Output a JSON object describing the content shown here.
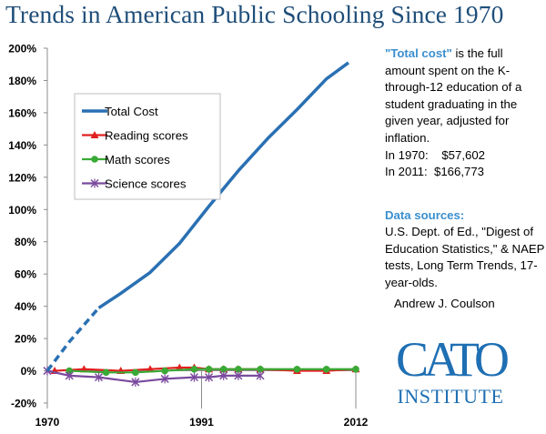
{
  "chart_data": {
    "type": "line",
    "title": "Trends in American Public Schooling Since 1970",
    "xlabel": "",
    "ylabel": "",
    "xlim": [
      1970,
      2012
    ],
    "ylim": [
      -20,
      200
    ],
    "x_ticks": [
      "1970",
      "1991",
      "2012"
    ],
    "x_tick_values": [
      1970,
      1991,
      2012
    ],
    "y_ticks": [
      "200%",
      "180%",
      "160%",
      "140%",
      "120%",
      "100%",
      "80%",
      "60%",
      "40%",
      "20%",
      "0%",
      "-20%"
    ],
    "y_tick_values": [
      200,
      180,
      160,
      140,
      120,
      100,
      80,
      60,
      40,
      20,
      0,
      -20
    ],
    "grid": false,
    "legend": "upper-left",
    "series": [
      {
        "name": "Total Cost",
        "color": "#2a70b3",
        "marker": "none",
        "dashed_until": 1977,
        "x": [
          1970,
          1973,
          1977,
          1980,
          1984,
          1988,
          1992,
          1996,
          2000,
          2004,
          2008,
          2011
        ],
        "y": [
          0,
          18,
          39,
          48,
          61,
          79,
          102,
          124,
          144,
          162,
          181,
          191
        ]
      },
      {
        "name": "Reading scores",
        "color": "#e02020",
        "marker": "triangle",
        "x": [
          1971,
          1975,
          1980,
          1984,
          1988,
          1990,
          1992,
          1994,
          1996,
          1999,
          2004,
          2008,
          2012
        ],
        "y": [
          0,
          1,
          0,
          1,
          2,
          2,
          1,
          1,
          1,
          1,
          0,
          0,
          1
        ]
      },
      {
        "name": "Math scores",
        "color": "#3aa935",
        "marker": "circle",
        "x": [
          1973,
          1978,
          1982,
          1986,
          1990,
          1992,
          1994,
          1996,
          1999,
          2004,
          2008,
          2012
        ],
        "y": [
          0,
          -1,
          -1,
          0,
          1,
          1,
          1,
          1,
          1,
          1,
          1,
          1
        ]
      },
      {
        "name": "Science scores",
        "color": "#7a4a9e",
        "marker": "x",
        "x": [
          1970,
          1973,
          1977,
          1982,
          1986,
          1990,
          1992,
          1994,
          1996,
          1999
        ],
        "y": [
          0,
          -3,
          -4,
          -7,
          -5,
          -4,
          -4,
          -3,
          -3,
          -3
        ]
      }
    ]
  },
  "sidebar": {
    "note_highlight": "\"Total cost\"",
    "note_text": " is the full amount spent on the K-through-12 education of a student graduating in the given year, adjusted for inflation.",
    "cost_1970": "In 1970:    $57,602",
    "cost_2011": "In 2011:  $166,773",
    "sources_heading": "Data sources:",
    "sources_text": "U.S. Dept. of Ed., \"Digest of Education Statistics,\"  & NAEP tests, Long Term Trends, 17-year-olds.",
    "author": "Andrew J. Coulson"
  },
  "logo": {
    "main": "CATO",
    "sub": "INSTITUTE",
    "color": "#1f6fb3"
  }
}
